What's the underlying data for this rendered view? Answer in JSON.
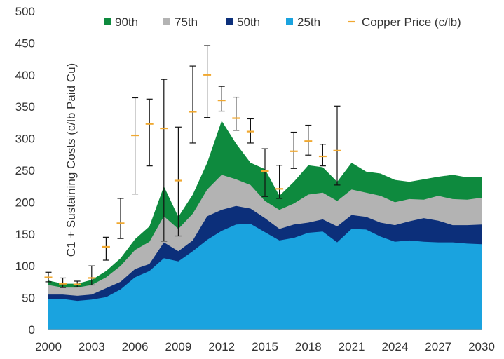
{
  "chart_data": {
    "type": "area",
    "title": "",
    "xlabel": "",
    "ylabel": "C1 + Sustaining Costs (c/lb Paid Cu)",
    "ylim": [
      0,
      500
    ],
    "yticks": [
      0,
      50,
      100,
      150,
      200,
      250,
      300,
      350,
      400,
      450,
      500
    ],
    "xlim": [
      2000,
      2030
    ],
    "xticks": [
      2000,
      2003,
      2006,
      2009,
      2012,
      2015,
      2018,
      2021,
      2024,
      2027,
      2030
    ],
    "x": [
      2000,
      2001,
      2002,
      2003,
      2004,
      2005,
      2006,
      2007,
      2008,
      2009,
      2010,
      2011,
      2012,
      2013,
      2014,
      2015,
      2016,
      2017,
      2018,
      2019,
      2020,
      2021,
      2022,
      2023,
      2024,
      2025,
      2026,
      2027,
      2028,
      2029,
      2030
    ],
    "series": [
      {
        "name": "90th",
        "color": "#0e8a3e",
        "values": [
          77,
          72,
          72,
          78,
          92,
          112,
          142,
          162,
          225,
          177,
          212,
          262,
          328,
          292,
          262,
          252,
          210,
          232,
          258,
          255,
          232,
          262,
          248,
          245,
          235,
          232,
          236,
          240,
          243,
          239,
          240
        ]
      },
      {
        "name": "75th",
        "color": "#b3b3b3",
        "values": [
          70,
          66,
          66,
          70,
          82,
          100,
          125,
          138,
          178,
          158,
          182,
          220,
          243,
          236,
          227,
          202,
          188,
          198,
          212,
          215,
          202,
          220,
          215,
          210,
          200,
          205,
          204,
          210,
          205,
          204,
          207
        ]
      },
      {
        "name": "50th",
        "color": "#0c2f7a",
        "values": [
          55,
          55,
          53,
          55,
          65,
          75,
          95,
          103,
          137,
          123,
          140,
          178,
          188,
          194,
          190,
          175,
          158,
          165,
          168,
          173,
          162,
          180,
          177,
          168,
          164,
          170,
          175,
          171,
          164,
          164,
          165
        ]
      },
      {
        "name": "25th",
        "color": "#1aa3df",
        "values": [
          48,
          48,
          45,
          47,
          51,
          63,
          82,
          92,
          112,
          107,
          123,
          141,
          155,
          165,
          166,
          153,
          140,
          144,
          152,
          154,
          137,
          158,
          157,
          146,
          138,
          140,
          138,
          137,
          137,
          135,
          134
        ]
      }
    ],
    "price_series": {
      "name": "Copper Price (c/lb)",
      "color": "#f0a830",
      "x": [
        2000,
        2001,
        2002,
        2003,
        2004,
        2005,
        2006,
        2007,
        2008,
        2009,
        2010,
        2011,
        2012,
        2013,
        2014,
        2015,
        2016,
        2017,
        2018,
        2019,
        2020
      ],
      "values": [
        82,
        72,
        71,
        81,
        130,
        167,
        305,
        323,
        316,
        234,
        342,
        400,
        360,
        332,
        311,
        249,
        221,
        280,
        296,
        272,
        281
      ],
      "low": [
        75,
        66,
        67,
        70,
        109,
        143,
        213,
        257,
        139,
        147,
        293,
        333,
        343,
        313,
        293,
        209,
        206,
        253,
        274,
        257,
        227
      ],
      "high": [
        90,
        81,
        76,
        100,
        145,
        206,
        364,
        362,
        393,
        318,
        414,
        446,
        382,
        365,
        331,
        284,
        258,
        310,
        321,
        291,
        351
      ]
    },
    "legend": [
      "90th",
      "75th",
      "50th",
      "25th",
      "Copper Price (c/lb)"
    ],
    "legend_position": "top",
    "grid": false
  }
}
